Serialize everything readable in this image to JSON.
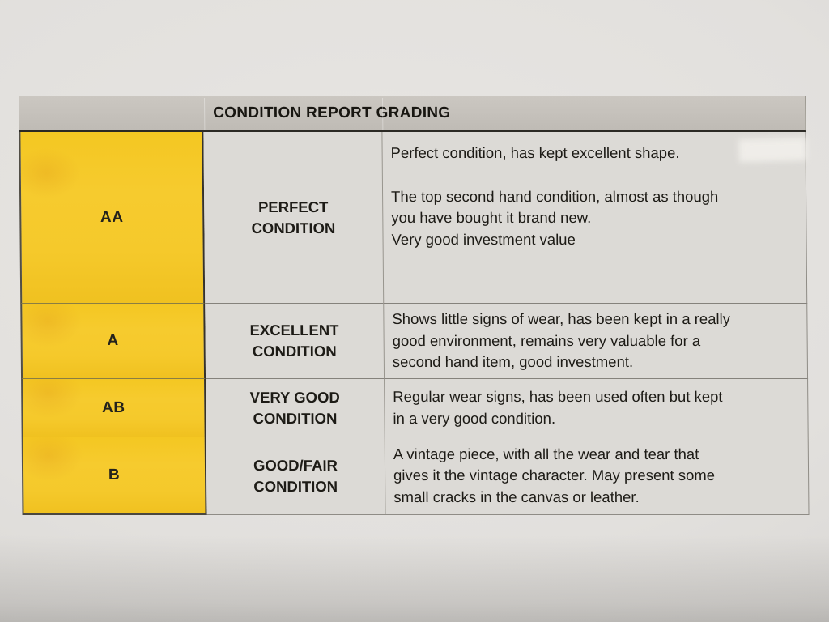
{
  "header": {
    "title": "CONDITION REPORT GRADING"
  },
  "rows": [
    {
      "grade": "AA",
      "condition": [
        "PERFECT",
        "CONDITION"
      ],
      "description": [
        [
          "Perfect condition, has kept excellent shape."
        ],
        [
          "The top second hand condition, almost as though",
          "you have bought it brand new."
        ],
        [
          "Very good investment value"
        ]
      ]
    },
    {
      "grade": "A",
      "condition": [
        "EXCELLENT",
        "CONDITION"
      ],
      "description": [
        [
          "Shows little signs of wear, has been kept in a really",
          "good environment, remains very valuable for a",
          "second hand item, good investment."
        ]
      ]
    },
    {
      "grade": "AB",
      "condition": [
        "VERY GOOD",
        "CONDITION"
      ],
      "description": [
        [
          "Regular wear signs, has been used often but kept",
          "in a very good condition."
        ]
      ]
    },
    {
      "grade": "B",
      "condition": [
        "GOOD/FAIR",
        "CONDITION"
      ],
      "description": [
        [
          "A vintage piece, with all the wear and tear that",
          "gives it the vintage character. May present some",
          "small cracks in the canvas or leather."
        ]
      ]
    }
  ],
  "colors": {
    "grade_column": "#F5C92B",
    "header_bar": "#C6C2BC",
    "cell_background": "#DCDAD6",
    "paper": "#E2E0DD",
    "text": "#201E1A",
    "border_dark": "#2B2924",
    "border_thin": "#85827C"
  }
}
